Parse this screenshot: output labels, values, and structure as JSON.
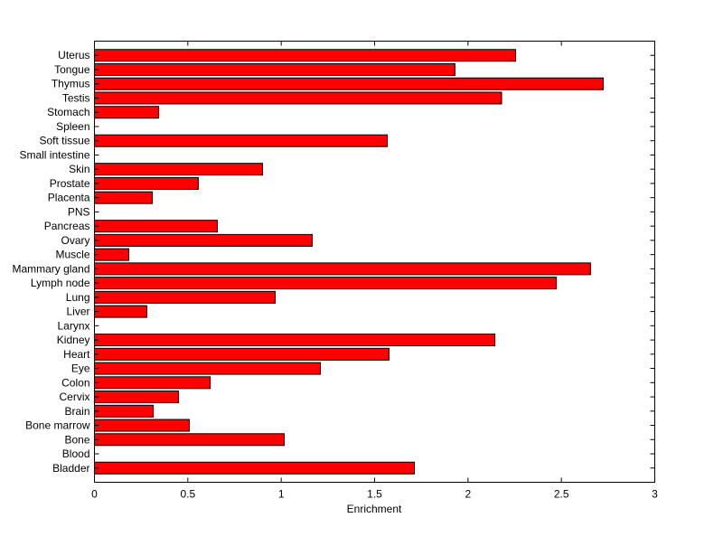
{
  "chart_data": {
    "type": "bar",
    "orientation": "horizontal",
    "title": "",
    "xlabel": "Enrichment",
    "ylabel": "",
    "xlim": [
      0,
      3
    ],
    "xticks": [
      0,
      0.5,
      1,
      1.5,
      2,
      2.5,
      3
    ],
    "xtick_labels": [
      "0",
      "0.5",
      "1",
      "1.5",
      "2",
      "2.5",
      "3"
    ],
    "grid": false,
    "bar_color": "#ff0000",
    "edge_color": "#000000",
    "categories": [
      "Uterus",
      "Tongue",
      "Thymus",
      "Testis",
      "Stomach",
      "Spleen",
      "Soft tissue",
      "Small intestine",
      "Skin",
      "Prostate",
      "Placenta",
      "PNS",
      "Pancreas",
      "Ovary",
      "Muscle",
      "Mammary gland",
      "Lymph node",
      "Lung",
      "Liver",
      "Larynx",
      "Kidney",
      "Heart",
      "Eye",
      "Colon",
      "Cervix",
      "Brain",
      "Bone marrow",
      "Bone",
      "Blood",
      "Bladder"
    ],
    "values": [
      2.255,
      1.93,
      2.724,
      2.18,
      0.344,
      0,
      1.568,
      0,
      0.9,
      0.556,
      0.31,
      0,
      0.658,
      1.166,
      0.184,
      2.656,
      2.473,
      0.968,
      0.28,
      0,
      2.144,
      1.577,
      1.21,
      0.62,
      0.45,
      0.315,
      0.508,
      1.016,
      0,
      1.713
    ]
  }
}
